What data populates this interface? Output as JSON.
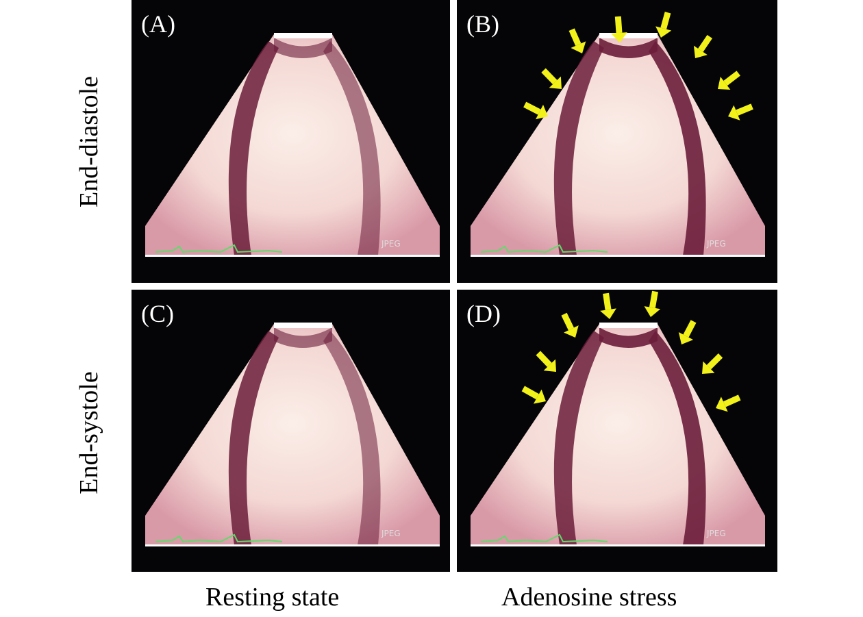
{
  "panels": [
    {
      "label": "(A)",
      "watermark": "JPEG",
      "arrows": false
    },
    {
      "label": "(B)",
      "watermark": "JPEG",
      "arrows": true
    },
    {
      "label": "(C)",
      "watermark": "JPEG",
      "arrows": false
    },
    {
      "label": "(D)",
      "watermark": "JPEG",
      "arrows": true
    }
  ],
  "row_labels": [
    "End-diastole",
    "End-systole"
  ],
  "column_labels": [
    "Resting state",
    "Adenosine stress"
  ],
  "colors": {
    "arrow": "#f2f21a",
    "ecg": "#5fdc6a",
    "myocardium": "#6b1d3a",
    "cavity": "#fbeee8"
  }
}
